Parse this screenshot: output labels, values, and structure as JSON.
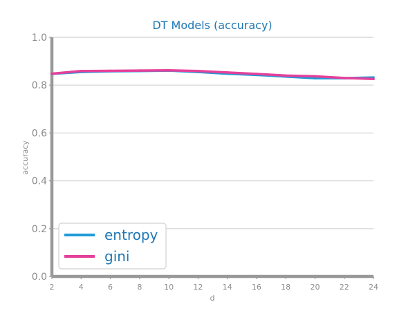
{
  "chart_data": {
    "type": "line",
    "title": "DT Models (accuracy)",
    "xlabel": "d",
    "ylabel": "accuracy",
    "x": [
      2,
      4,
      6,
      8,
      10,
      12,
      14,
      16,
      18,
      20,
      22,
      24
    ],
    "xlim": [
      2,
      24
    ],
    "ylim": [
      0.0,
      1.0
    ],
    "xticks": [
      "2",
      "4",
      "6",
      "8",
      "10",
      "12",
      "14",
      "16",
      "18",
      "20",
      "22",
      "24"
    ],
    "yticks": [
      {
        "value": 0.0,
        "label": "0.0"
      },
      {
        "value": 0.2,
        "label": "0.2"
      },
      {
        "value": 0.4,
        "label": "0.4"
      },
      {
        "value": 0.6,
        "label": "0.6"
      },
      {
        "value": 0.8,
        "label": "0.8"
      },
      {
        "value": 1.0,
        "label": "1.0"
      }
    ],
    "grid": true,
    "legend_position": "bottom-left",
    "series": [
      {
        "name": "entropy",
        "color": "#1f9bd7",
        "values": [
          0.847,
          0.855,
          0.858,
          0.859,
          0.861,
          0.855,
          0.848,
          0.843,
          0.836,
          0.829,
          0.829,
          0.832
        ]
      },
      {
        "name": "gini",
        "color": "#e5409a",
        "values": [
          0.848,
          0.859,
          0.86,
          0.861,
          0.862,
          0.859,
          0.853,
          0.847,
          0.84,
          0.837,
          0.83,
          0.826
        ]
      }
    ]
  },
  "colors": {
    "title": "#1f77b4",
    "axis": "#999999",
    "grid": "#d9d9d9",
    "tick_text": "#8c8c8c",
    "legend_text": "#1f77b4",
    "legend_border": "#d0d0d0"
  }
}
